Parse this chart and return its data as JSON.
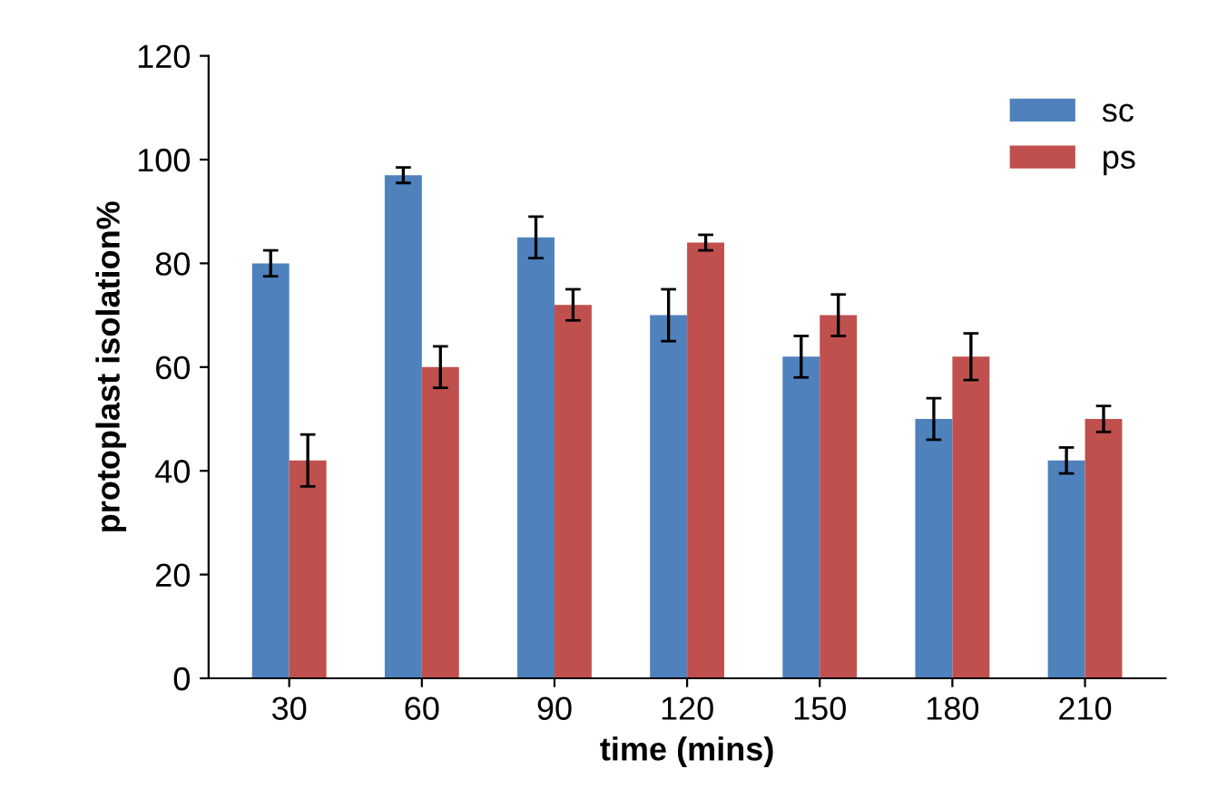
{
  "chart_data": {
    "type": "bar",
    "xlabel": "time (mins)",
    "ylabel": "protoplast isolation%",
    "categories": [
      "30",
      "60",
      "90",
      "120",
      "150",
      "180",
      "210"
    ],
    "series": [
      {
        "name": "sc",
        "color": "#4f81bd",
        "values": [
          80,
          97,
          85,
          70,
          62,
          50,
          42
        ],
        "errors": [
          2.5,
          1.5,
          4,
          5,
          4,
          4,
          2.5
        ]
      },
      {
        "name": "ps",
        "color": "#c0504d",
        "values": [
          42,
          60,
          72,
          84,
          70,
          62,
          50
        ],
        "errors": [
          5,
          4,
          3,
          1.5,
          4,
          4.5,
          2.5
        ]
      }
    ],
    "ylim": [
      0,
      120
    ],
    "yticks": [
      0,
      20,
      40,
      60,
      80,
      100,
      120
    ],
    "grid": false,
    "legend": "top right"
  }
}
